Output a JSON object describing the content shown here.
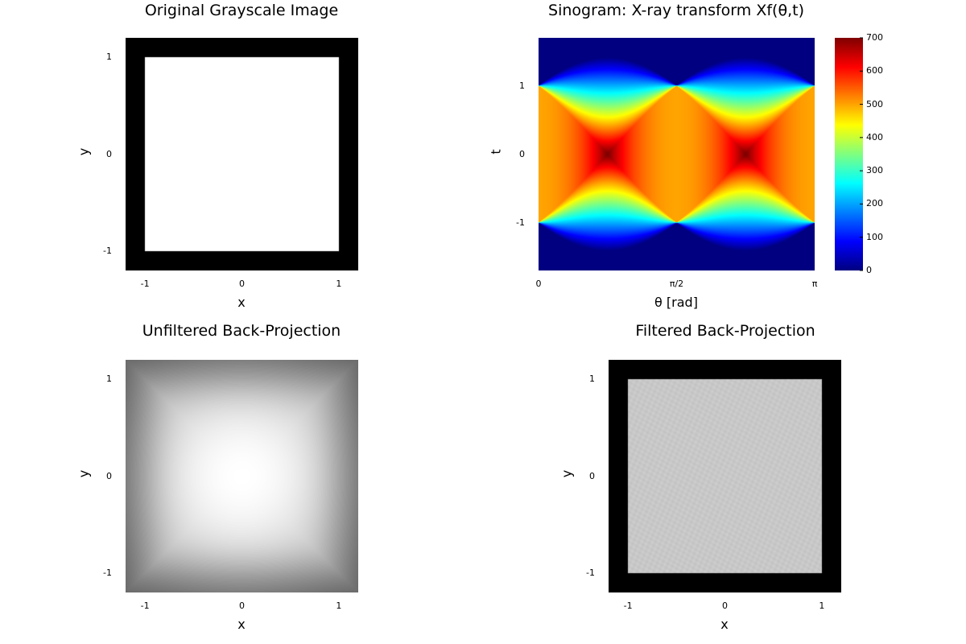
{
  "chart_data": [
    {
      "type": "heatmap",
      "title": "Original Grayscale Image",
      "xlabel": "x",
      "ylabel": "y",
      "xlim": [
        -1.2,
        1.2
      ],
      "ylim": [
        -1.2,
        1.2
      ],
      "xticks": [
        {
          "value": -1,
          "label": "-1"
        },
        {
          "value": 0,
          "label": "0"
        },
        {
          "value": 1,
          "label": "1"
        }
      ],
      "yticks": [
        {
          "value": -1,
          "label": "-1"
        },
        {
          "value": 0,
          "label": "0"
        },
        {
          "value": 1,
          "label": "1"
        }
      ],
      "colormap": "gray",
      "image": "white square occupying |x|<=1, |y|<=1 on black background"
    },
    {
      "type": "heatmap",
      "title": "Sinogram: X-ray transform Xf(θ,t)",
      "xlabel": "θ [rad]",
      "ylabel": "t",
      "xlim": [
        0,
        3.14159
      ],
      "ylim": [
        -1.7,
        1.7
      ],
      "xticks": [
        {
          "value": 0,
          "label": "0"
        },
        {
          "value": 1.5708,
          "label": "π/2"
        },
        {
          "value": 3.14159,
          "label": "π"
        }
      ],
      "yticks": [
        {
          "value": -1,
          "label": "-1"
        },
        {
          "value": 0,
          "label": "0"
        },
        {
          "value": 1,
          "label": "1"
        }
      ],
      "colormap": "jet",
      "colorbar": {
        "min": 0,
        "max": 700,
        "ticks": [
          {
            "value": 0,
            "label": "0"
          },
          {
            "value": 100,
            "label": "100"
          },
          {
            "value": 200,
            "label": "200"
          },
          {
            "value": 300,
            "label": "300"
          },
          {
            "value": 400,
            "label": "400"
          },
          {
            "value": 500,
            "label": "500"
          },
          {
            "value": 600,
            "label": "600"
          },
          {
            "value": 700,
            "label": "700"
          }
        ]
      },
      "peak_value": 707,
      "flat_value": 500
    },
    {
      "type": "heatmap",
      "title": "Unfiltered Back-Projection",
      "xlabel": "x",
      "ylabel": "y",
      "xlim": [
        -1.2,
        1.2
      ],
      "ylim": [
        -1.2,
        1.2
      ],
      "xticks": [
        {
          "value": -1,
          "label": "-1"
        },
        {
          "value": 0,
          "label": "0"
        },
        {
          "value": 1,
          "label": "1"
        }
      ],
      "yticks": [
        {
          "value": -1,
          "label": "-1"
        },
        {
          "value": 0,
          "label": "0"
        },
        {
          "value": 1,
          "label": "1"
        }
      ],
      "colormap": "gray",
      "image": "blurred bright square fading to dark at edges"
    },
    {
      "type": "heatmap",
      "title": "Filtered Back-Projection",
      "xlabel": "x",
      "ylabel": "y",
      "xlim": [
        -1.2,
        1.2
      ],
      "ylim": [
        -1.2,
        1.2
      ],
      "xticks": [
        {
          "value": -1,
          "label": "-1"
        },
        {
          "value": 0,
          "label": "0"
        },
        {
          "value": 1,
          "label": "1"
        }
      ],
      "yticks": [
        {
          "value": -1,
          "label": "-1"
        },
        {
          "value": 0,
          "label": "0"
        },
        {
          "value": 1,
          "label": "1"
        }
      ],
      "colormap": "gray",
      "image": "light gray square on black background with faint streak artifacts"
    }
  ]
}
